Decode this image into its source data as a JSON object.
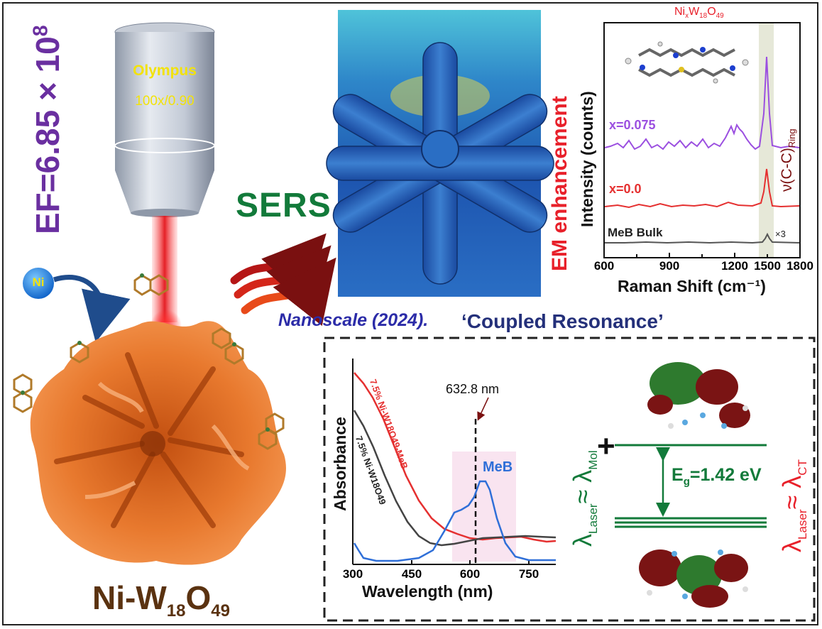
{
  "objective": {
    "brand": "Olympus",
    "spec": "100x/0.90"
  },
  "enhancement_factor": {
    "prefix": "EF=6.85 × 10",
    "exponent": "8"
  },
  "sers_label": "SERS",
  "ni_label": "Ni",
  "product": {
    "part1": "Ni-W",
    "sub1": "18",
    "part2": "O",
    "sub2": "49"
  },
  "em_label": "EM enhancement",
  "citation": "Nanoscale (2024).",
  "coupled_label": "‘Coupled Resonance’",
  "raman_chart": {
    "title_parts": [
      "Ni",
      "x",
      "W",
      "18",
      "O",
      "49"
    ],
    "mode_label": {
      "base": "ν(C-C)",
      "sub": "Ring"
    },
    "ylabel": "Intensity (counts)",
    "xlabel": "Raman Shift (cm⁻¹)",
    "xticks": [
      "600",
      "900",
      "1200",
      "1500",
      "1800"
    ],
    "trace_labels": [
      "x=0.075",
      "x=0.0",
      "MeB Bulk"
    ],
    "multiplier": "×3"
  },
  "absorbance_chart": {
    "ylabel": "Absorbance",
    "xlabel": "Wavelength (nm)",
    "xticks": [
      "300",
      "450",
      "600",
      "750"
    ],
    "laser_line": "632.8 nm",
    "meb_label": "MeB",
    "series_label_composite": "7.5% Ni-W18O49-MeB",
    "series_label_bare": "7.5% Ni-W18O49"
  },
  "energy": {
    "lam_mol": {
      "symbol": "λ",
      "laser_sub": "Laser",
      "approx": "≈ λ",
      "mol_sub": "Mol"
    },
    "lam_ct": {
      "symbol": "λ",
      "laser_sub": "Laser",
      "approx": "≈ λ",
      "ct_sub": "CT"
    },
    "plus": "+",
    "eg": {
      "base": "E",
      "sub": "g",
      "value": "=1.42 eV"
    }
  },
  "colors": {
    "purple": "#6a2fa0",
    "green": "#127a3a",
    "red": "#e8202a",
    "orange": "#e8792e",
    "navy": "#24307a",
    "trace_purple": "#9b4fe0",
    "trace_red": "#e53030",
    "trace_gray": "#555555",
    "trace_blue": "#2f6fd8"
  }
}
